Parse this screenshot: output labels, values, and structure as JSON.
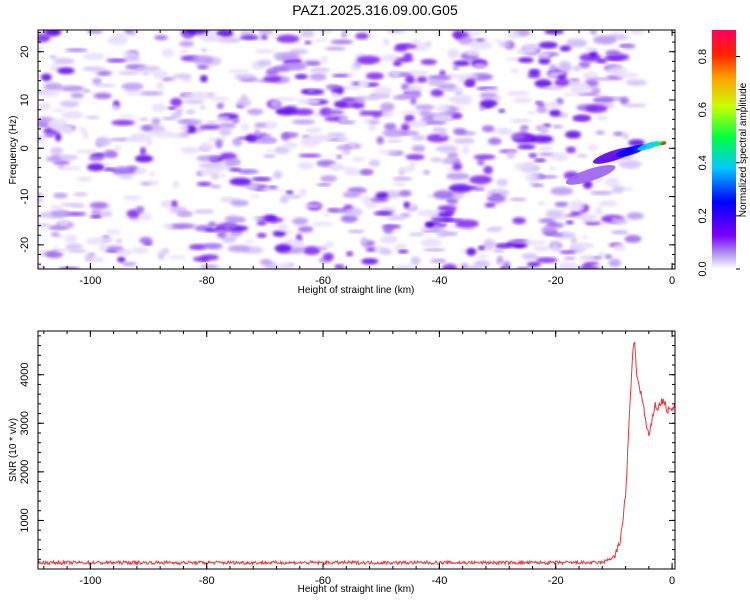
{
  "title": "PAZ1.2025.316.09.00.G05",
  "chart_data": [
    {
      "type": "heatmap",
      "xlabel": "Height of straight line (km)",
      "ylabel": "Frequency (Hz)",
      "xlim": [
        -109,
        0.5
      ],
      "ylim": [
        -25,
        24.5
      ],
      "xticks": [
        -100,
        -80,
        -60,
        -40,
        -20,
        0
      ],
      "yticks": [
        -20,
        -10,
        0,
        10,
        20
      ],
      "colorbar": {
        "label": "Normalized spectral amplitude",
        "range": [
          0,
          0.9
        ],
        "ticks": [
          0.0,
          0.2,
          0.4,
          0.6,
          0.8
        ]
      },
      "features": [
        {
          "description": "scattered low amplitude noise blobs",
          "x_range": [
            -109,
            -10
          ],
          "y_range": [
            -25,
            24.5
          ],
          "amplitude": 0.15
        },
        {
          "description": "signal streak near 0 Hz",
          "x": -2,
          "y": 0.5,
          "amplitude": 0.85
        }
      ]
    },
    {
      "type": "line",
      "xlabel": "Height of straight line (km)",
      "ylabel": "SNR (10 * v/v)",
      "xlim": [
        -109,
        0.5
      ],
      "ylim": [
        0,
        4900
      ],
      "xticks": [
        -100,
        -80,
        -60,
        -40,
        -20,
        0
      ],
      "yticks": [
        1000,
        2000,
        3000,
        4000
      ],
      "series": [
        {
          "name": "SNR",
          "color": "#e8363a",
          "x": [
            -109,
            -60,
            -12,
            -10,
            -9,
            -8,
            -7.5,
            -7,
            -6.5,
            -6,
            -5.5,
            -5,
            -4.5,
            -4,
            -3.5,
            -3,
            -2.5,
            -2,
            -1.5,
            -1,
            -0.5,
            0,
            0.5
          ],
          "y": [
            130,
            130,
            130,
            250,
            500,
            1500,
            2700,
            4000,
            4750,
            3900,
            3700,
            3400,
            3000,
            2700,
            3000,
            3400,
            3300,
            3400,
            3500,
            3300,
            3250,
            3300,
            3300
          ]
        }
      ]
    }
  ],
  "colors": {
    "line": "#e8363a",
    "frame": "#000000"
  }
}
